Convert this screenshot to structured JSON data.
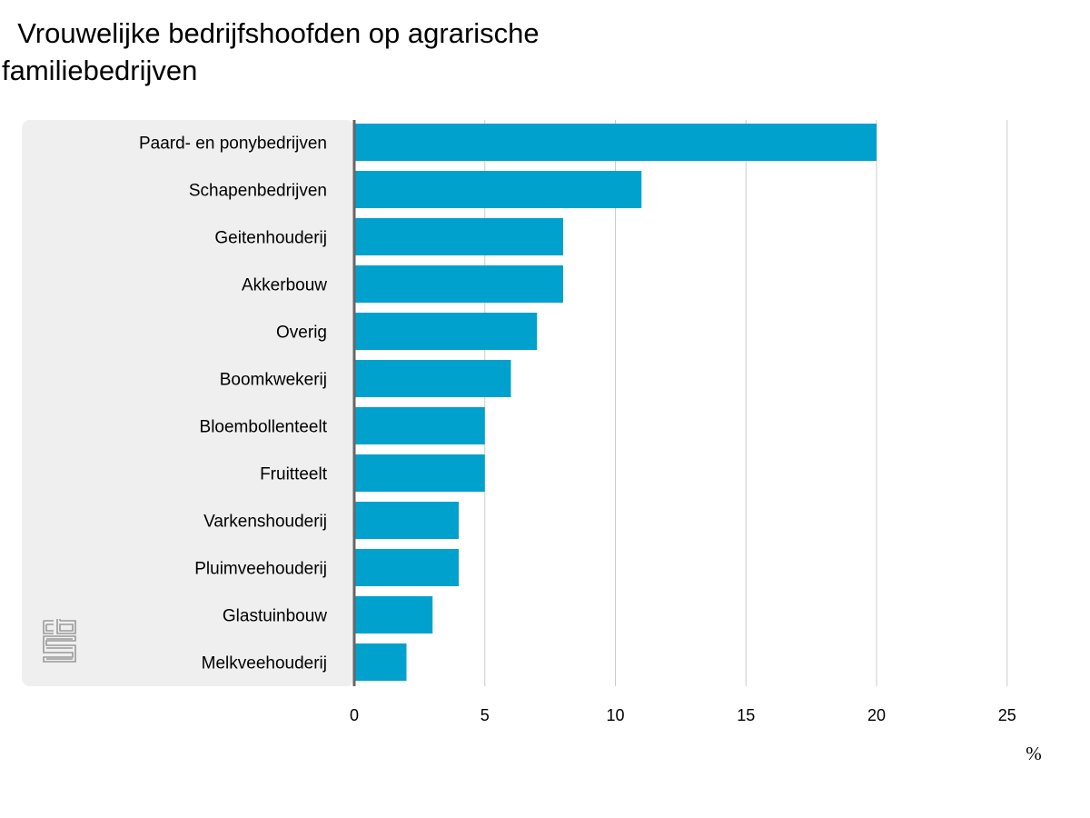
{
  "chart_data": {
    "type": "bar",
    "orientation": "horizontal",
    "title": "  Vrouwelijke bedrijfshoofden op agrarische familiebedrijven",
    "xlabel": "%",
    "ylabel": "",
    "xlim": [
      0,
      25
    ],
    "ticks": [
      "0",
      "5",
      "10",
      "15",
      "20",
      "25"
    ],
    "grid": true,
    "bar_color": "#00a1cd",
    "panel_color": "#efefef",
    "logo_icon": "cbs-logo-icon",
    "categories": [
      "Paard- en ponybedrijven",
      "Schapenbedrijven",
      "Geitenhouderij",
      "Akkerbouw",
      "Overig",
      "Boomkwekerij",
      "Bloembollenteelt",
      "Fruitteelt",
      "Varkenshouderij",
      "Pluimveehouderij",
      "Glastuinbouw",
      "Melkveehouderij"
    ],
    "values": [
      20,
      11,
      8,
      8,
      7,
      6,
      5,
      5,
      4,
      4,
      3,
      2
    ]
  }
}
